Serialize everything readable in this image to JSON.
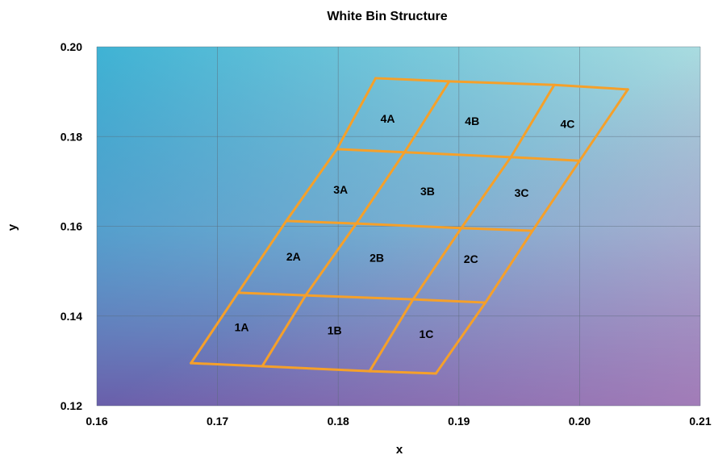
{
  "chart_data": {
    "type": "scatter",
    "title": "White Bin Structure",
    "xlabel": "x",
    "ylabel": "y",
    "xlim": [
      0.16,
      0.21
    ],
    "ylim": [
      0.12,
      0.2
    ],
    "xticks": [
      0.16,
      0.17,
      0.18,
      0.19,
      0.2,
      0.21
    ],
    "yticks": [
      0.12,
      0.14,
      0.16,
      0.18,
      0.2
    ],
    "xtick_labels": [
      "0.16",
      "0.17",
      "0.18",
      "0.19",
      "0.20",
      "0.21"
    ],
    "ytick_labels": [
      "0.12",
      "0.14",
      "0.16",
      "0.18",
      "0.20"
    ],
    "grid": true,
    "line_color": "#f5a02a",
    "background_gradient": [
      "#4bbad6",
      "#9ed0e0",
      "#6a64b0",
      "#b08ac4"
    ],
    "bin_grid_corners": [
      [
        [
          0.1678,
          0.1295
        ],
        [
          0.1737,
          0.1288
        ],
        [
          0.1826,
          0.1277
        ],
        [
          0.1881,
          0.1272
        ]
      ],
      [
        [
          0.1717,
          0.1452
        ],
        [
          0.1773,
          0.1446
        ],
        [
          0.1862,
          0.1437
        ],
        [
          0.1922,
          0.143
        ]
      ],
      [
        [
          0.1757,
          0.1612
        ],
        [
          0.1815,
          0.1606
        ],
        [
          0.1902,
          0.1596
        ],
        [
          0.1961,
          0.159
        ]
      ],
      [
        [
          0.1799,
          0.1772
        ],
        [
          0.1855,
          0.1765
        ],
        [
          0.1943,
          0.1754
        ],
        [
          0.2,
          0.1746
        ]
      ],
      [
        [
          0.1831,
          0.193
        ],
        [
          0.1892,
          0.1923
        ],
        [
          0.1979,
          0.1915
        ],
        [
          0.204,
          0.1905
        ]
      ]
    ],
    "bins": [
      {
        "label": "1A",
        "x": 0.172,
        "y": 0.1375
      },
      {
        "label": "1B",
        "x": 0.1797,
        "y": 0.1368
      },
      {
        "label": "1C",
        "x": 0.1873,
        "y": 0.136
      },
      {
        "label": "2A",
        "x": 0.1763,
        "y": 0.1533
      },
      {
        "label": "2B",
        "x": 0.1832,
        "y": 0.153
      },
      {
        "label": "2C",
        "x": 0.191,
        "y": 0.1527
      },
      {
        "label": "3A",
        "x": 0.1802,
        "y": 0.1682
      },
      {
        "label": "3B",
        "x": 0.1874,
        "y": 0.1678
      },
      {
        "label": "3C",
        "x": 0.1952,
        "y": 0.1675
      },
      {
        "label": "4A",
        "x": 0.1841,
        "y": 0.184
      },
      {
        "label": "4B",
        "x": 0.1911,
        "y": 0.1835
      },
      {
        "label": "4C",
        "x": 0.199,
        "y": 0.1828
      }
    ]
  }
}
